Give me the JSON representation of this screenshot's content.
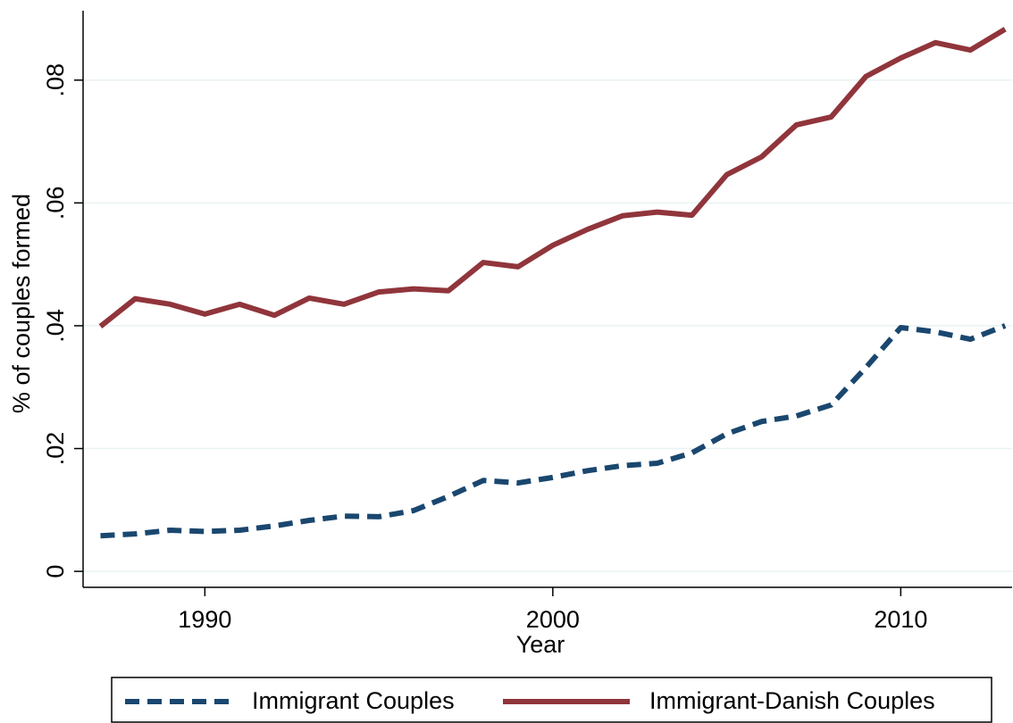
{
  "chart_data": {
    "type": "line",
    "x_label": "Year",
    "y_label": "% of couples formed",
    "x": [
      1987,
      1988,
      1989,
      1990,
      1991,
      1992,
      1993,
      1994,
      1995,
      1996,
      1997,
      1998,
      1999,
      2000,
      2001,
      2002,
      2003,
      2004,
      2005,
      2006,
      2007,
      2008,
      2009,
      2010,
      2011,
      2012,
      2013
    ],
    "series": [
      {
        "name": "Immigrant Couples",
        "color": "#1a476f",
        "style": "dash",
        "values": [
          0.0058,
          0.0061,
          0.0067,
          0.0065,
          0.0067,
          0.0074,
          0.0083,
          0.009,
          0.0089,
          0.0099,
          0.0122,
          0.0148,
          0.0144,
          0.0153,
          0.0164,
          0.0172,
          0.0176,
          0.0193,
          0.0224,
          0.0244,
          0.0253,
          0.0271,
          0.0332,
          0.0397,
          0.039,
          0.0378,
          0.04
        ]
      },
      {
        "name": "Immigrant-Danish Couples",
        "color": "#90353b",
        "style": "solid",
        "values": [
          0.0399,
          0.0444,
          0.0435,
          0.0419,
          0.0435,
          0.0417,
          0.0445,
          0.0435,
          0.0455,
          0.046,
          0.0457,
          0.0503,
          0.0496,
          0.0531,
          0.0557,
          0.0579,
          0.0585,
          0.058,
          0.0646,
          0.0675,
          0.0727,
          0.074,
          0.0806,
          0.0836,
          0.0861,
          0.0849,
          0.0883
        ]
      }
    ],
    "xlim": [
      1986.5,
      2013.2
    ],
    "ylim": [
      -0.0026,
      0.0913
    ],
    "xticks": [
      1990,
      2000,
      2010
    ],
    "yticks": [
      0,
      {
        "value": 0.02,
        "label": ".02"
      },
      {
        "value": 0.04,
        "label": ".04"
      },
      {
        "value": 0.06,
        "label": ".06"
      },
      {
        "value": 0.08,
        "label": ".08"
      }
    ],
    "grid": true,
    "legend": "bottom"
  }
}
